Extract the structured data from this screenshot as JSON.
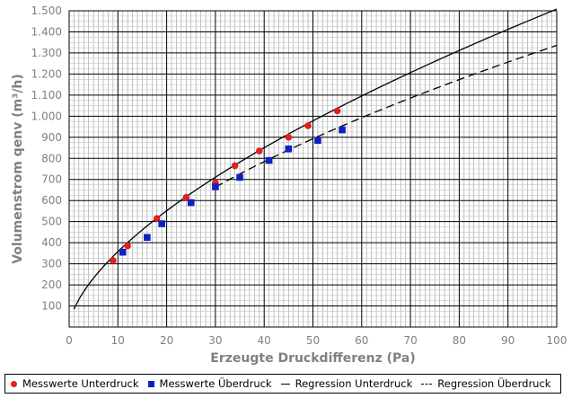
{
  "chart_data": {
    "type": "scatter",
    "xlabel": "Erzeugte Druckdifferenz (Pa)",
    "ylabel": "Volumenstrom qenv (m³/h)",
    "xlim": [
      0,
      100
    ],
    "ylim": [
      0,
      1500
    ],
    "x_ticks": [
      "0",
      "10",
      "20",
      "30",
      "40",
      "50",
      "60",
      "70",
      "80",
      "90",
      "100"
    ],
    "y_ticks": [
      "100",
      "200",
      "300",
      "400",
      "500",
      "600",
      "700",
      "800",
      "900",
      "1.000",
      "1.100",
      "1.200",
      "1.300",
      "1.400",
      "1.500"
    ],
    "grid": true,
    "minor_grid": true,
    "legend_position": "bottom",
    "series": [
      {
        "name": "Messwerte Unterdruck",
        "marker": "circle",
        "color": "#e02020",
        "points": [
          [
            9,
            315
          ],
          [
            12,
            385
          ],
          [
            18,
            515
          ],
          [
            24,
            615
          ],
          [
            30,
            685
          ],
          [
            34,
            765
          ],
          [
            39,
            835
          ],
          [
            45,
            900
          ],
          [
            49,
            955
          ],
          [
            55,
            1025
          ]
        ]
      },
      {
        "name": "Messwerte Überdruck",
        "marker": "square",
        "color": "#1020c0",
        "points": [
          [
            11,
            355
          ],
          [
            16,
            425
          ],
          [
            19,
            490
          ],
          [
            25,
            590
          ],
          [
            30,
            665
          ],
          [
            35,
            710
          ],
          [
            41,
            790
          ],
          [
            45,
            845
          ],
          [
            51,
            885
          ],
          [
            56,
            935
          ]
        ]
      },
      {
        "name": "Regression Unterdruck",
        "line": "solid",
        "color": "#000000",
        "C": 84.8,
        "n": 0.625,
        "x_range": [
          1,
          100
        ]
      },
      {
        "name": "Regression Überdruck",
        "line": "dashed",
        "color": "#000000",
        "C": 92.0,
        "n": 0.581,
        "x_range": [
          30,
          100
        ]
      }
    ]
  }
}
